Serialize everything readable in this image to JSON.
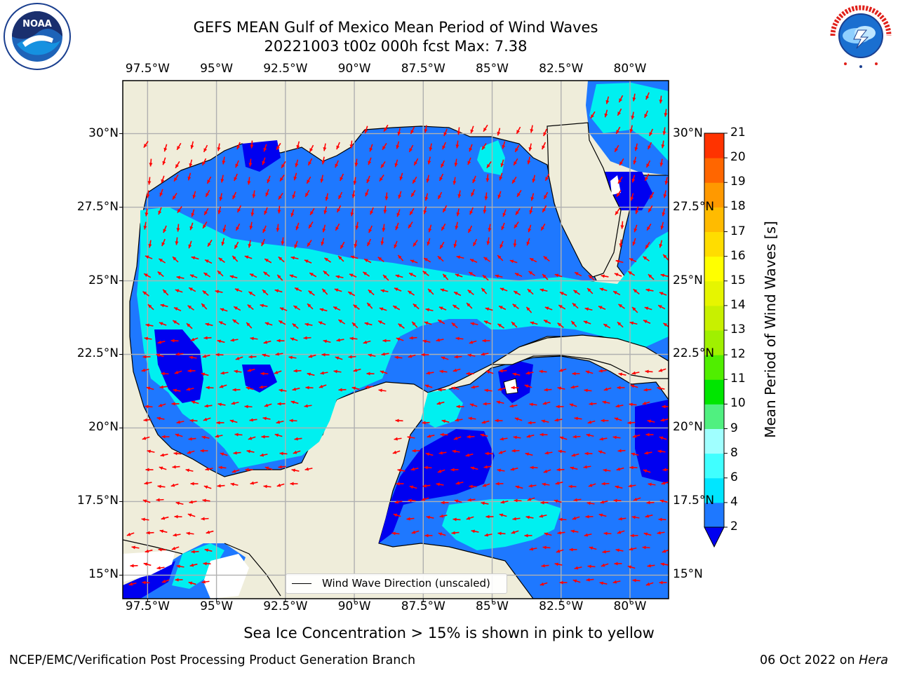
{
  "header": {
    "title_line1": "GEFS MEAN Gulf of Mexico Mean Period of Wind Waves",
    "title_line2": "20221003 t00z 000h fcst   Max: 7.38"
  },
  "logos": {
    "left": {
      "name": "noaa-logo",
      "text": "NOAA"
    },
    "right": {
      "name": "nws-logo",
      "text": "NATIONAL WEATHER SERVICE"
    }
  },
  "colors": {
    "land": "#efedda",
    "coast": "#000000",
    "grid": "#b0b0b0",
    "arrow": "#ff0000",
    "level_2_4": "#1e78ff",
    "level_0_2": "#0000f0",
    "level_4_6": "#00f0f0"
  },
  "chart_data": {
    "type": "heatmap",
    "title": "GEFS MEAN Gulf of Mexico Mean Period of Wind Waves",
    "subtitle": "20221003 t00z 000h fcst   Max: 7.38",
    "xlim": [
      -98.4,
      -78.6
    ],
    "ylim": [
      14.2,
      31.8
    ],
    "x_tick_labels": [
      "97.5°W",
      "95°W",
      "92.5°W",
      "90°W",
      "87.5°W",
      "85°W",
      "82.5°W",
      "80°W"
    ],
    "x_tick_values": [
      -97.5,
      -95,
      -92.5,
      -90,
      -87.5,
      -85,
      -82.5,
      -80
    ],
    "y_tick_labels_left": [
      "30°N",
      "27.5°N",
      "25°N",
      "22.5°N",
      "20°N",
      "17.5°N",
      "15°N"
    ],
    "y_tick_labels_right": [
      "30°N",
      "27.5°N",
      "25°N",
      "22.5°N",
      "20°N",
      "17.5°N",
      "15°N"
    ],
    "y_tick_values": [
      30,
      27.5,
      25,
      22.5,
      20,
      17.5,
      15
    ],
    "grid": true,
    "max_value": 7.38,
    "legend": {
      "label": "Wind Wave Direction (unscaled)",
      "placement": "lower-center"
    },
    "colorbar": {
      "label": "Mean Period of Wind Waves [s]",
      "ticks": [
        2,
        4,
        6,
        8,
        9,
        10,
        11,
        12,
        13,
        14,
        15,
        16,
        17,
        18,
        19,
        20,
        21
      ],
      "tick_labels": [
        "2",
        "4",
        "6",
        "8",
        "9",
        "10",
        "11",
        "12",
        "13",
        "14",
        "15",
        "16",
        "17",
        "18",
        "19",
        "20",
        "21"
      ],
      "colors": [
        "#1e78ff",
        "#00e6ff",
        "#40ffff",
        "#a0ffff",
        "#50f080",
        "#00e600",
        "#50ee00",
        "#a0f000",
        "#c8f000",
        "#e6f500",
        "#ffff00",
        "#ffdd00",
        "#ffbb00",
        "#ff9900",
        "#ff6600",
        "#ff3300",
        "#ff0000"
      ],
      "under_color": "#0000f0"
    }
  },
  "footer": {
    "note": "Sea Ice Concentration > 15% is shown in pink to yellow",
    "left": "NCEP/EMC/Verification Post Processing Product Generation Branch",
    "right_prefix": "06 Oct 2022 on ",
    "right_host": "Hera"
  }
}
